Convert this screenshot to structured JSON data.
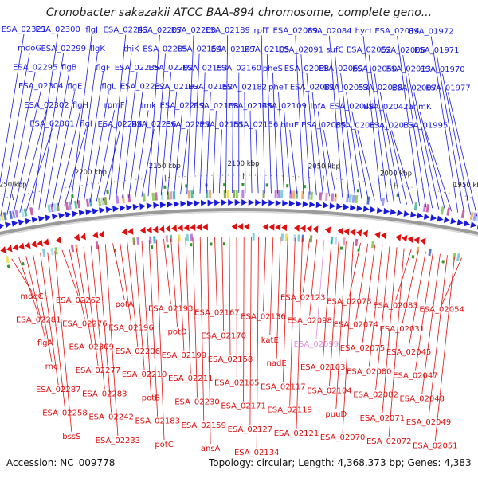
{
  "title": "Cronobacter sakazakii ATCC BAA-894 chromosome, complete geno...",
  "accession_line": "Accession: NC_009778",
  "summary_line": "Topology: circular; Length: 4,368,373 bp; Genes: 4,383",
  "colors": {
    "forward_strand": "#1a1adc",
    "reverse_strand": "#e01010",
    "highlighted_label": "#e090e0",
    "backbone": "#9a9a9a",
    "marker_green": "#2e9a2e"
  },
  "scale_ticks": [
    "2250 kbp",
    "2200 kbp",
    "2150 kbp",
    "2100 kbp",
    "2050 kbp",
    "2000 kbp",
    "1950 kbp"
  ],
  "forward_labels": [
    "ESA_02321",
    "mdoG",
    "ESA_02295",
    "ESA_02304",
    "ESA_02302",
    "ESA_02301",
    "ESA_02300",
    "ESA_02299",
    "flgB",
    "flgE",
    "flgH",
    "flgI",
    "flgJ",
    "flgK",
    "flgF",
    "flgL",
    "rpmF",
    "ESA_02244",
    "ESA_02243",
    "thiK",
    "ESA_02235",
    "ESA_02232",
    "tmk",
    "ESA_02236",
    "ESA_02207",
    "ESA_02205",
    "ESA_02202",
    "ESA_02197",
    "ESA_02219",
    "ESA_02227",
    "ESA_02200",
    "ESA_02154",
    "ESA_02153",
    "ESA_02152",
    "ESA_02168",
    "ESA_02151",
    "ESA_02189",
    "ESA_02147",
    "ESA_02160",
    "ESA_02182",
    "ESA_02145",
    "ESA_02156",
    "rplT",
    "ESA_02105",
    "pheS",
    "pheT",
    "ESA_02109",
    "btuE",
    "ESA_02089",
    "ESA_02091",
    "ESA_02088",
    "ESA_02081",
    "ihfA",
    "ESA_02085",
    "ESA_02084",
    "sufC",
    "ESA_02069",
    "ESA_02053",
    "ESA_02044",
    "ESA_02063",
    "hycI",
    "ESA_02052",
    "ESA_02050",
    "ESA_02038",
    "ESA_02042",
    "ESA_02033",
    "ESA_02014",
    "ESA_02006",
    "ESA_02013",
    "ESA_02007",
    "anmK",
    "ESA_01995",
    "ESA_01972",
    "ESA_01971",
    "ESA_01970",
    "ESA_01977"
  ],
  "reverse_labels": [
    "mdoC",
    "ESA_02281",
    "flgA",
    "rne",
    "ESA_02287",
    "ESA_02258",
    "bssS",
    "ESA_02262",
    "ESA_02276",
    "ESA_02309",
    "ESA_02277",
    "ESA_02283",
    "ESA_02242",
    "ESA_02233",
    "potA",
    "ESA_02196",
    "ESA_02206",
    "ESA_02210",
    "potB",
    "ESA_02183",
    "potC",
    "ESA_02193",
    "potD",
    "ESA_02199",
    "ESA_02211",
    "ESA_02230",
    "ESA_02159",
    "ansA",
    "ESA_02167",
    "ESA_02170",
    "ESA_02158",
    "ESA_02165",
    "ESA_02171",
    "ESA_02127",
    "ESA_02134",
    "ESA_02136",
    "katE",
    "nadE",
    "ESA_02117",
    "ESA_02119",
    "ESA_02121",
    "ESA_02123",
    "ESA_02098",
    "ESA_02099",
    "ESA_02103",
    "ESA_02104",
    "puuD",
    "ESA_02070",
    "ESA_02073",
    "ESA_02074",
    "ESA_02075",
    "ESA_02080",
    "ESA_02082",
    "ESA_02071",
    "ESA_02072",
    "ESA_02083",
    "ESA_02031",
    "ESA_02045",
    "ESA_02047",
    "ESA_02048",
    "ESA_02049",
    "ESA_02051",
    "ESA_02054"
  ],
  "highlighted_label": "ESA_02099"
}
